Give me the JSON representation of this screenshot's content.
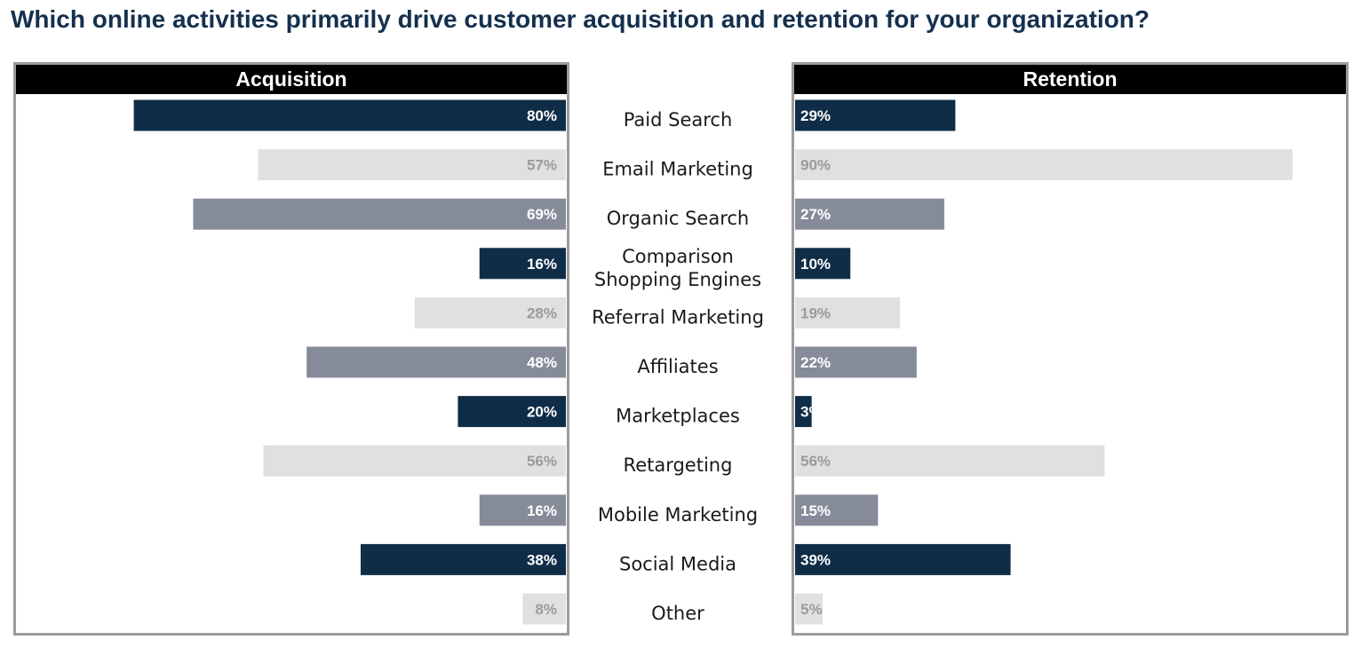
{
  "title": "Which online activities primarily drive customer acquisition and retention for your organization?",
  "colors": {
    "dark": "#0f2d47",
    "light": "#e0e0e3",
    "mid": "#868b9a",
    "header": "#000000",
    "label_on_dark": "#ffffff",
    "label_on_light": "#9a9a9a"
  },
  "chart_data": {
    "type": "bar",
    "orientation": "horizontal",
    "layout": "back-to-back",
    "title": "Which online activities primarily drive customer acquisition and retention for your organization?",
    "categories": [
      [
        "Paid Search"
      ],
      [
        "Email Marketing"
      ],
      [
        "Organic Search"
      ],
      [
        "Comparison",
        "Shopping Engines"
      ],
      [
        "Referral Marketing"
      ],
      [
        "Affiliates"
      ],
      [
        "Marketplaces"
      ],
      [
        "Retargeting"
      ],
      [
        "Mobile Marketing"
      ],
      [
        "Social Media"
      ],
      [
        "Other"
      ]
    ],
    "bar_colors": [
      "dark",
      "light",
      "mid",
      "dark",
      "light",
      "mid",
      "dark",
      "light",
      "mid",
      "dark",
      "light"
    ],
    "series": [
      {
        "name": "Acquisition",
        "values": [
          80,
          57,
          69,
          16,
          28,
          48,
          20,
          56,
          16,
          38,
          8
        ],
        "labels": [
          "80%",
          "57%",
          "69%",
          "16%",
          "28%",
          "48%",
          "20%",
          "56%",
          "16%",
          "38%",
          "8%"
        ]
      },
      {
        "name": "Retention",
        "values": [
          29,
          90,
          27,
          10,
          19,
          22,
          3,
          56,
          15,
          39,
          5
        ],
        "labels": [
          "29%",
          "90%",
          "27%",
          "10%",
          "19%",
          "22%",
          "3%",
          "56%",
          "15%",
          "39%",
          "5%"
        ]
      }
    ],
    "xlim": [
      0,
      100
    ],
    "value_suffix": "%",
    "grid": false,
    "legend": "none"
  }
}
